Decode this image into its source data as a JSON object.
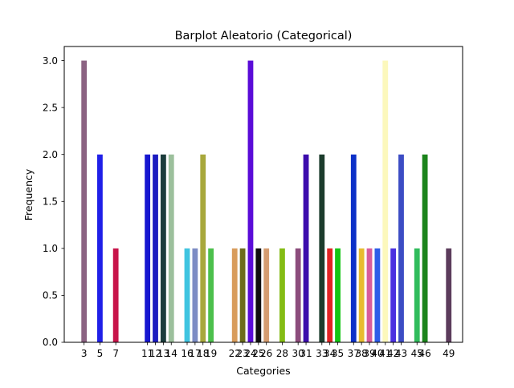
{
  "chart_data": {
    "type": "bar",
    "title": "Barplot Aleatorio (Categorical)",
    "xlabel": "Categories",
    "ylabel": "Frequency",
    "ylim": [
      0,
      3.15
    ],
    "yticks": [
      "0.0",
      "0.5",
      "1.0",
      "1.5",
      "2.0",
      "2.5",
      "3.0"
    ],
    "grid": false,
    "bars": [
      {
        "category": "3",
        "value": 3,
        "color": "#8B6282"
      },
      {
        "category": "5",
        "value": 2,
        "color": "#2020E8"
      },
      {
        "category": "7",
        "value": 1,
        "color": "#C8144A"
      },
      {
        "category": "11",
        "value": 2,
        "color": "#1616D0"
      },
      {
        "category": "12",
        "value": 2,
        "color": "#1C1CC0"
      },
      {
        "category": "13",
        "value": 2,
        "color": "#1C3C3C"
      },
      {
        "category": "14",
        "value": 2,
        "color": "#9CC09C"
      },
      {
        "category": "16",
        "value": 1,
        "color": "#40C4E0"
      },
      {
        "category": "17",
        "value": 1,
        "color": "#7C8CC4"
      },
      {
        "category": "18",
        "value": 2,
        "color": "#A8A83C"
      },
      {
        "category": "19",
        "value": 1,
        "color": "#4CC04C"
      },
      {
        "category": "22",
        "value": 1,
        "color": "#D89C5C"
      },
      {
        "category": "23",
        "value": 1,
        "color": "#6C6C1C"
      },
      {
        "category": "24",
        "value": 3,
        "color": "#5A0CD8"
      },
      {
        "category": "25",
        "value": 1,
        "color": "#101010"
      },
      {
        "category": "26",
        "value": 1,
        "color": "#D49C70"
      },
      {
        "category": "28",
        "value": 1,
        "color": "#84BC14"
      },
      {
        "category": "30",
        "value": 1,
        "color": "#8C4C7C"
      },
      {
        "category": "31",
        "value": 2,
        "color": "#3C0CAC"
      },
      {
        "category": "33",
        "value": 2,
        "color": "#1C3C2C"
      },
      {
        "category": "34",
        "value": 1,
        "color": "#E02424"
      },
      {
        "category": "35",
        "value": 1,
        "color": "#14C414"
      },
      {
        "category": "37",
        "value": 2,
        "color": "#0C30C8"
      },
      {
        "category": "38",
        "value": 1,
        "color": "#E8BC30"
      },
      {
        "category": "39",
        "value": 1,
        "color": "#D85C9C"
      },
      {
        "category": "40",
        "value": 1,
        "color": "#2C5CE8"
      },
      {
        "category": "41",
        "value": 3,
        "color": "#FCF8BC"
      },
      {
        "category": "42",
        "value": 1,
        "color": "#4C30E0"
      },
      {
        "category": "43",
        "value": 2,
        "color": "#3C4CC4"
      },
      {
        "category": "45",
        "value": 1,
        "color": "#30BC5C"
      },
      {
        "category": "46",
        "value": 2,
        "color": "#1C841C"
      },
      {
        "category": "49",
        "value": 1,
        "color": "#5C3C5C"
      }
    ],
    "xtick_labels": [
      "3",
      "5",
      "7",
      "11",
      "12",
      "13",
      "14",
      "16",
      "17",
      "18",
      "19",
      "22",
      "23",
      "24",
      "25",
      "26",
      "28",
      "30",
      "31",
      "33",
      "34",
      "35",
      "37",
      "38",
      "39",
      "40",
      "41",
      "42",
      "43",
      "45",
      "46",
      "49"
    ]
  }
}
